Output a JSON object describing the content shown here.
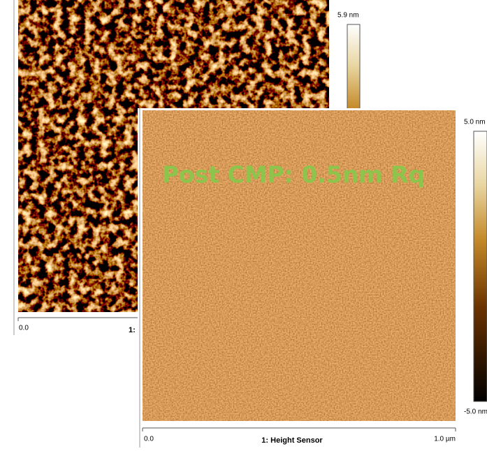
{
  "back_panel": {
    "colorbar_max": "5.9 nm",
    "axis_start": "0.0",
    "axis_title": "1:"
  },
  "front_panel": {
    "annotation": "Post CMP: 0.5nm Rq",
    "colorbar_max": "5.0 nm",
    "colorbar_min": "-5.0 nm",
    "axis_start": "0.0",
    "axis_title": "1: Height Sensor",
    "axis_end": "1.0 µm"
  }
}
